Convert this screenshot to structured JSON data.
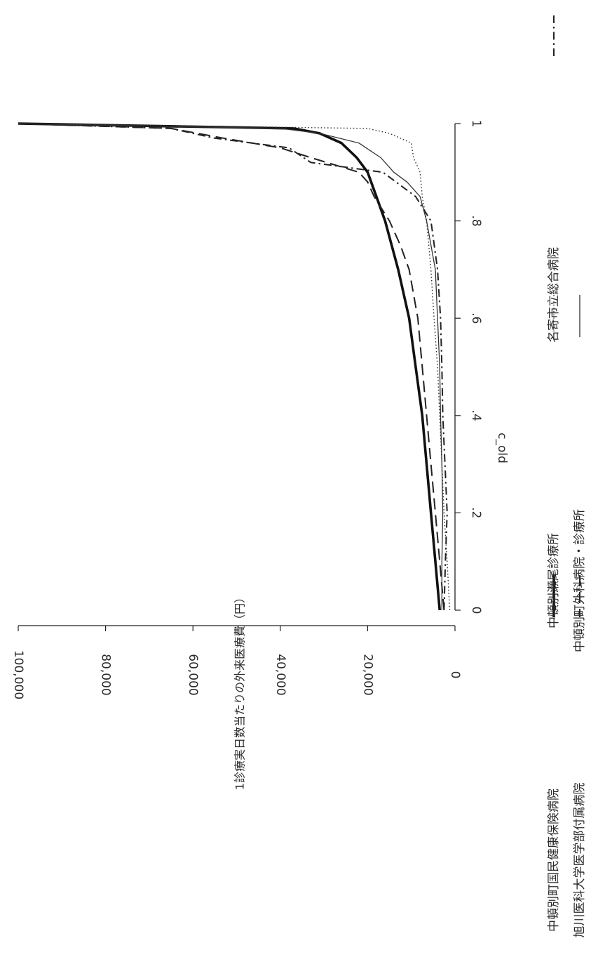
{
  "chart_data": {
    "type": "line",
    "orientation": "rotated-90-clockwise",
    "xlabel": "c_old",
    "ylabel": "1診療実日数当たりの外来医療費（円）",
    "x_ticks": [
      "0",
      ".2",
      ".4",
      ".6",
      ".8",
      "1"
    ],
    "y_ticks": [
      "0",
      "20,000",
      "40,000",
      "60,000",
      "80,000",
      "100,000"
    ],
    "xlim": [
      0,
      1
    ],
    "ylim": [
      0,
      100000
    ],
    "grid": false,
    "legend_position": "bottom",
    "series": [
      {
        "name": "中頓別町国民健康保険病院",
        "style": "solid-thick",
        "points": [
          [
            0.0,
            3500
          ],
          [
            0.1,
            4500
          ],
          [
            0.2,
            5500
          ],
          [
            0.3,
            6500
          ],
          [
            0.4,
            7500
          ],
          [
            0.5,
            9000
          ],
          [
            0.6,
            10500
          ],
          [
            0.7,
            13000
          ],
          [
            0.8,
            16000
          ],
          [
            0.85,
            18000
          ],
          [
            0.9,
            20000
          ],
          [
            0.93,
            22500
          ],
          [
            0.96,
            26000
          ],
          [
            0.98,
            31000
          ],
          [
            0.99,
            37000
          ],
          [
            1.0,
            100000
          ]
        ]
      },
      {
        "name": "中頓別瀬尾診療所",
        "style": "dotted",
        "points": [
          [
            0.0,
            1200
          ],
          [
            0.1,
            1800
          ],
          [
            0.2,
            2500
          ],
          [
            0.3,
            3000
          ],
          [
            0.4,
            3500
          ],
          [
            0.5,
            4000
          ],
          [
            0.6,
            4800
          ],
          [
            0.7,
            5500
          ],
          [
            0.8,
            6500
          ],
          [
            0.85,
            7500
          ],
          [
            0.9,
            8000
          ],
          [
            0.93,
            9500
          ],
          [
            0.96,
            10000
          ],
          [
            0.98,
            15000
          ],
          [
            0.99,
            20000
          ],
          [
            1.0,
            100000
          ]
        ]
      },
      {
        "name": "名寄市立総合病院",
        "style": "dash-dot",
        "points": [
          [
            0.0,
            2500
          ],
          [
            0.1,
            2200
          ],
          [
            0.2,
            1800
          ],
          [
            0.3,
            2300
          ],
          [
            0.4,
            2800
          ],
          [
            0.5,
            3000
          ],
          [
            0.6,
            3300
          ],
          [
            0.7,
            4000
          ],
          [
            0.8,
            5500
          ],
          [
            0.85,
            9000
          ],
          [
            0.88,
            13500
          ],
          [
            0.9,
            16500
          ],
          [
            0.92,
            33000
          ],
          [
            0.95,
            38000
          ],
          [
            0.97,
            55000
          ],
          [
            0.99,
            65000
          ],
          [
            1.0,
            100000
          ]
        ]
      },
      {
        "name": "旭川医科大学医学部付属病院",
        "style": "long-dash",
        "points": [
          [
            0.0,
            2500
          ],
          [
            0.1,
            3500
          ],
          [
            0.2,
            4500
          ],
          [
            0.3,
            5500
          ],
          [
            0.4,
            6500
          ],
          [
            0.5,
            7500
          ],
          [
            0.6,
            8500
          ],
          [
            0.7,
            10500
          ],
          [
            0.75,
            12500
          ],
          [
            0.8,
            15000
          ],
          [
            0.85,
            18500
          ],
          [
            0.88,
            20000
          ],
          [
            0.9,
            22000
          ],
          [
            0.93,
            33000
          ],
          [
            0.95,
            40000
          ],
          [
            0.97,
            53000
          ],
          [
            0.99,
            65000
          ],
          [
            1.0,
            100000
          ]
        ]
      },
      {
        "name": "中頓別町外科病院・診療所",
        "style": "solid-thin",
        "points": [
          [
            0.0,
            3000
          ],
          [
            0.1,
            3000
          ],
          [
            0.2,
            2800
          ],
          [
            0.3,
            3000
          ],
          [
            0.4,
            3300
          ],
          [
            0.5,
            3500
          ],
          [
            0.6,
            4000
          ],
          [
            0.7,
            4500
          ],
          [
            0.8,
            6500
          ],
          [
            0.85,
            8000
          ],
          [
            0.88,
            11000
          ],
          [
            0.9,
            14000
          ],
          [
            0.93,
            17000
          ],
          [
            0.96,
            22000
          ],
          [
            0.98,
            31000
          ],
          [
            0.99,
            40000
          ],
          [
            1.0,
            100000
          ]
        ]
      }
    ],
    "legend": {
      "rows": [
        [
          {
            "label": "中頓別町国民健康保険病院",
            "series": 0
          },
          {
            "label": "中頓別瀬尾診療所",
            "series": 1
          },
          {
            "label": "名寄市立総合病院",
            "series": 2
          }
        ],
        [
          {
            "label": "旭川医科大学医学部付属病院",
            "series": 3
          },
          {
            "label": "中頓別町外科病院・診療所",
            "series": 4
          }
        ]
      ]
    }
  }
}
